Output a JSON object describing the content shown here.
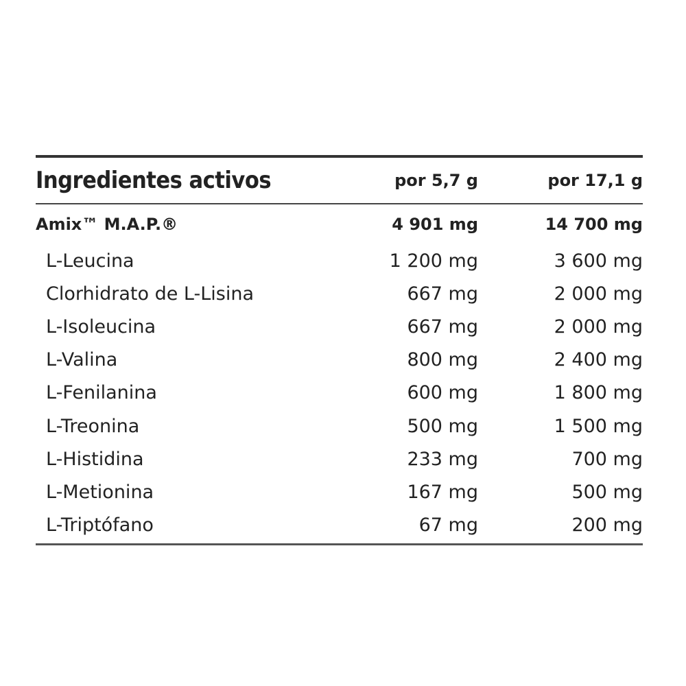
{
  "table": {
    "header": [
      "Ingredientes activos",
      "por 5,7 g",
      "por 17,1 g"
    ],
    "rows": [
      [
        "Amix™ M.A.P.®",
        "4 901 mg",
        "14 700 mg"
      ],
      [
        "L-Leucina",
        "1 200 mg",
        "3 600 mg"
      ],
      [
        "Clorhidrato de L-Lisina",
        "667 mg",
        "2 000 mg"
      ],
      [
        "L-Isoleucina",
        "667 mg",
        "2 000 mg"
      ],
      [
        "L-Valina",
        "800 mg",
        "2 400 mg"
      ],
      [
        "L-Fenilanina",
        "600 mg",
        "1 800 mg"
      ],
      [
        "L-Treonina",
        "500 mg",
        "1 500 mg"
      ],
      [
        "L-Histidina",
        "233 mg",
        "700 mg"
      ],
      [
        "L-Metionina",
        "167 mg",
        "500 mg"
      ],
      [
        "L-Triptófano",
        "67 mg",
        "200 mg"
      ]
    ]
  }
}
